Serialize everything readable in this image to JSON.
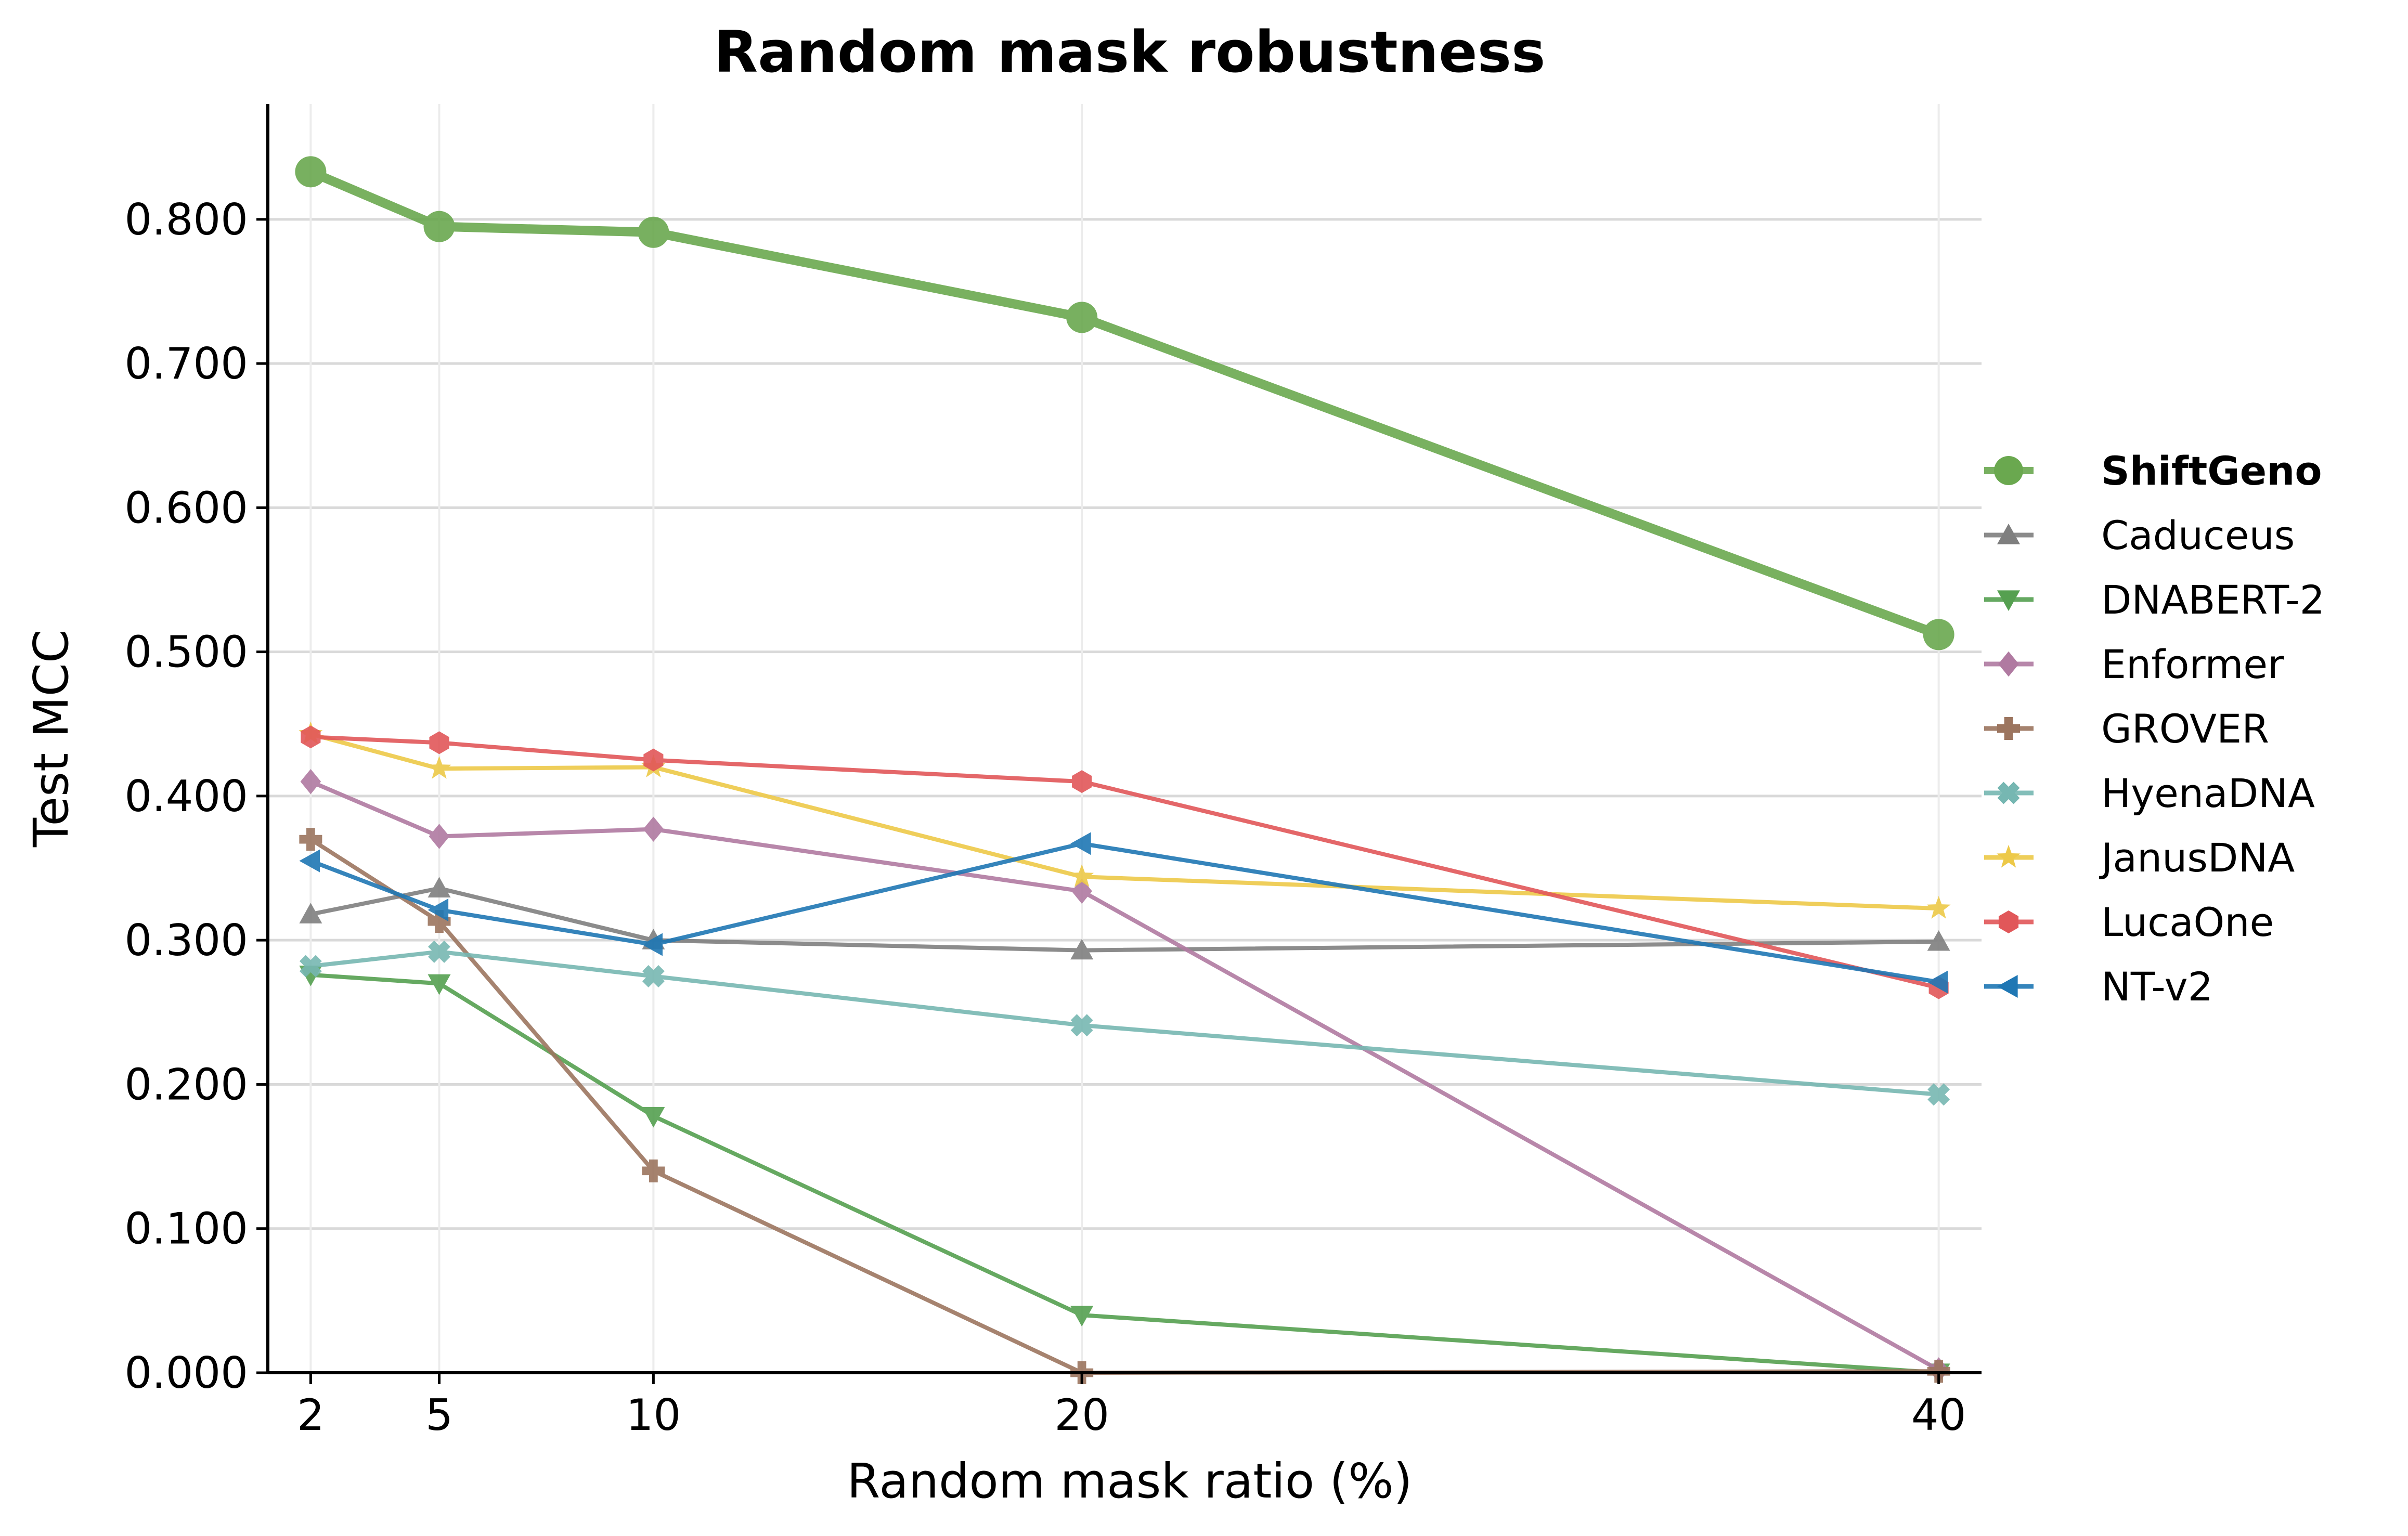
{
  "chart_data": {
    "type": "line",
    "title": "Random mask robustness",
    "xlabel": "Random mask ratio (%)",
    "ylabel": "Test MCC",
    "x": [
      2,
      5,
      10,
      20,
      40
    ],
    "x_ticks": [
      "2",
      "5",
      "10",
      "20",
      "40"
    ],
    "y_ticks": [
      "0.000",
      "0.100",
      "0.200",
      "0.300",
      "0.400",
      "0.500",
      "0.600",
      "0.700",
      "0.800"
    ],
    "xlim": [
      1,
      41
    ],
    "ylim": [
      0,
      0.88
    ],
    "grid": true,
    "legend_position": "right",
    "series": [
      {
        "name": "ShiftGeno",
        "values": [
          0.833,
          0.795,
          0.791,
          0.732,
          0.512
        ],
        "color": "#6aa84f",
        "marker": "circle",
        "highlight": true
      },
      {
        "name": "Caduceus",
        "values": [
          0.318,
          0.336,
          0.3,
          0.293,
          0.299
        ],
        "color": "#7f7f7f",
        "marker": "triangle-up"
      },
      {
        "name": "DNABERT-2",
        "values": [
          0.276,
          0.27,
          0.178,
          0.04,
          0.0
        ],
        "color": "#55a050",
        "marker": "triangle-down"
      },
      {
        "name": "Enformer",
        "values": [
          0.41,
          0.372,
          0.377,
          0.334,
          0.002
        ],
        "color": "#b07aa1",
        "marker": "diamond"
      },
      {
        "name": "GROVER",
        "values": [
          0.37,
          0.313,
          0.14,
          0.0,
          0.001
        ],
        "color": "#9c755f",
        "marker": "plus"
      },
      {
        "name": "HyenaDNA",
        "values": [
          0.282,
          0.292,
          0.275,
          0.241,
          0.193
        ],
        "color": "#76b7b2",
        "marker": "x"
      },
      {
        "name": "JanusDNA",
        "values": [
          0.443,
          0.419,
          0.42,
          0.344,
          0.322
        ],
        "color": "#edc948",
        "marker": "star"
      },
      {
        "name": "LucaOne",
        "values": [
          0.441,
          0.437,
          0.425,
          0.41,
          0.267
        ],
        "color": "#e15759",
        "marker": "hexagon"
      },
      {
        "name": "NT-v2",
        "values": [
          0.355,
          0.321,
          0.297,
          0.367,
          0.271
        ],
        "color": "#1f77b4",
        "marker": "triangle-left"
      }
    ]
  }
}
